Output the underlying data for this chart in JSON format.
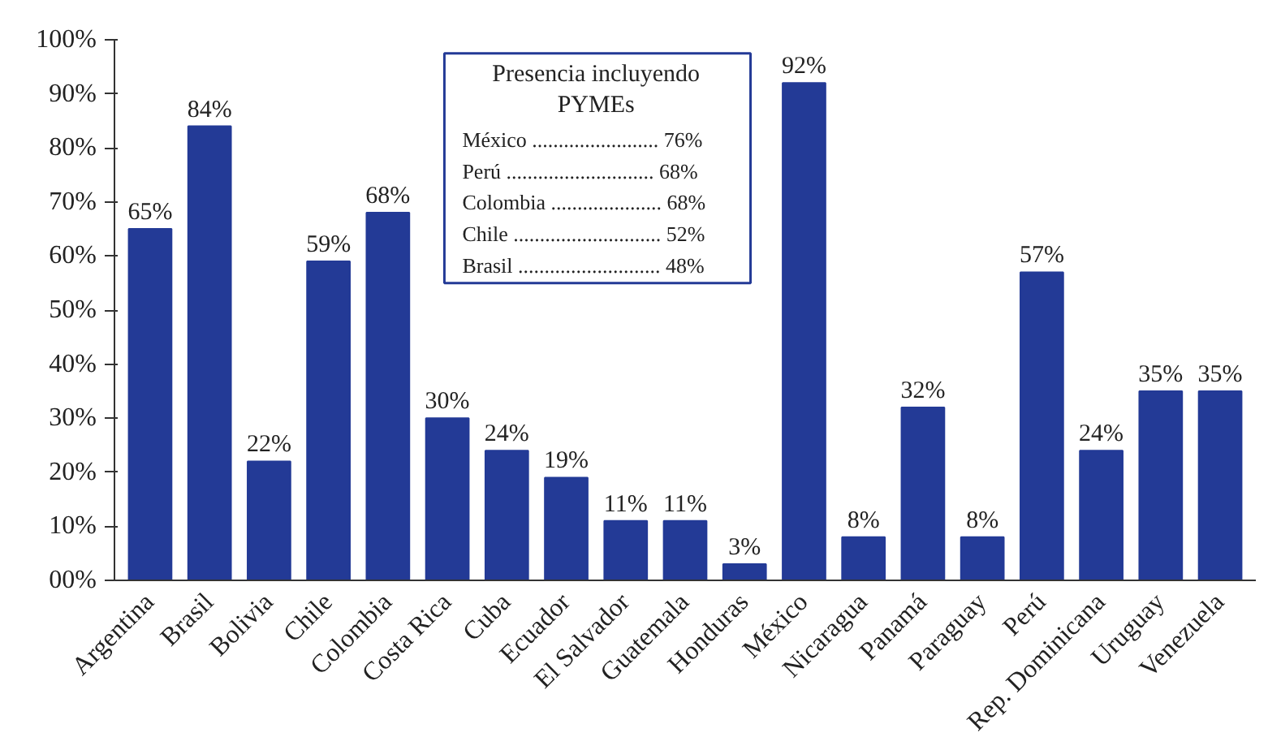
{
  "chart_data": {
    "type": "bar",
    "categories": [
      "Argentina",
      "Brasil",
      "Bolivia",
      "Chile",
      "Colombia",
      "Costa Rica",
      "Cuba",
      "Ecuador",
      "El Salvador",
      "Guatemala",
      "Honduras",
      "México",
      "Nicaragua",
      "Panamá",
      "Paraguay",
      "Perú",
      "Rep. Dominicana",
      "Uruguay",
      "Venezuela"
    ],
    "values": [
      65,
      84,
      22,
      59,
      68,
      30,
      24,
      19,
      11,
      11,
      3,
      92,
      8,
      32,
      8,
      57,
      24,
      35,
      35
    ],
    "value_labels": [
      "65%",
      "84%",
      "22%",
      "59%",
      "68%",
      "30%",
      "24%",
      "19%",
      "11%",
      "11%",
      "3%",
      "92%",
      "8%",
      "32%",
      "8%",
      "57%",
      "24%",
      "35%",
      "35%"
    ],
    "color": "#233a96",
    "ylim": [
      0,
      100
    ],
    "yticks": [
      {
        "value": 0,
        "label": "00%"
      },
      {
        "value": 10,
        "label": "10%"
      },
      {
        "value": 20,
        "label": "20%"
      },
      {
        "value": 30,
        "label": "30%"
      },
      {
        "value": 40,
        "label": "40%"
      },
      {
        "value": 50,
        "label": "50%"
      },
      {
        "value": 60,
        "label": "60%"
      },
      {
        "value": 70,
        "label": "70%"
      },
      {
        "value": 80,
        "label": "80%"
      },
      {
        "value": 90,
        "label": "90%"
      },
      {
        "value": 100,
        "label": "100%"
      }
    ],
    "annotations": [
      "Presencia incluyendo PYMEs",
      "México ........................ 76%",
      "Perú ............................ 68%",
      "Colombia ..................... 68%",
      "Chile ............................ 52%",
      "Brasil ........................... 48%"
    ],
    "grid": false
  }
}
